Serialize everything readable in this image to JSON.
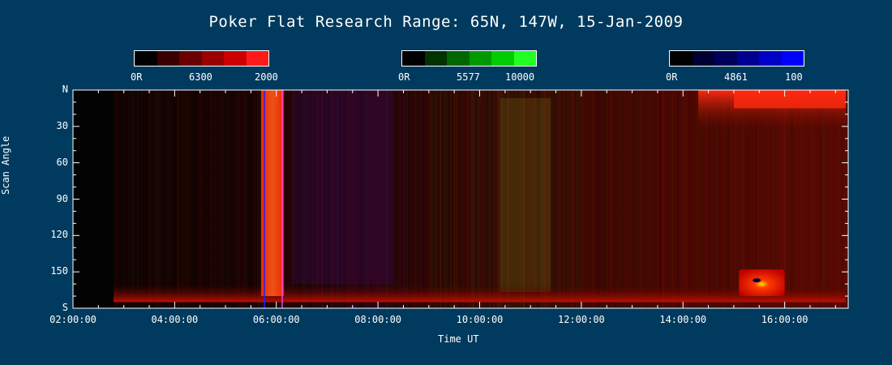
{
  "chart_data": {
    "type": "heatmap",
    "title": "Poker Flat Research Range: 65N, 147W, 15-Jan-2009",
    "xlabel": "Time UT",
    "ylabel": "Scan Angle",
    "x_ticks": [
      "02:00:00",
      "04:00:00",
      "06:00:00",
      "08:00:00",
      "10:00:00",
      "12:00:00",
      "14:00:00",
      "16:00:00"
    ],
    "y_ticks": [
      "N",
      "30",
      "60",
      "90",
      "120",
      "150",
      "S"
    ],
    "xlim_hours": [
      2.0,
      17.25
    ],
    "ylim_deg": [
      0,
      180
    ],
    "grid": false,
    "colorbars": [
      {
        "name": "red",
        "labels": [
          "0R",
          "6300",
          "2000"
        ],
        "colors": [
          "#000000",
          "#3a0000",
          "#6a0000",
          "#9a0000",
          "#cc0000",
          "#ff1a1a"
        ]
      },
      {
        "name": "green",
        "labels": [
          "0R",
          "5577",
          "10000"
        ],
        "colors": [
          "#000000",
          "#003300",
          "#006600",
          "#009a00",
          "#00cc00",
          "#22ff22"
        ]
      },
      {
        "name": "blue",
        "labels": [
          "0R",
          "4861",
          "100"
        ],
        "colors": [
          "#000000",
          "#000033",
          "#00005a",
          "#000090",
          "#0000c8",
          "#0000ff"
        ]
      }
    ],
    "features": [
      {
        "desc": "dark no-data region",
        "t_start": 2.0,
        "t_end": 2.8
      },
      {
        "desc": "bright red auroral band",
        "t_start": 5.7,
        "t_end": 6.15,
        "angle_start": 0,
        "angle_end": 170
      },
      {
        "desc": "red auroral band near north",
        "t_start": 14.3,
        "t_end": 17.2,
        "angle_start": 0,
        "angle_end": 35
      },
      {
        "desc": "bright red patch near south",
        "t_start": 15.1,
        "t_end": 16.0,
        "angle_start": 148,
        "angle_end": 170
      }
    ]
  }
}
